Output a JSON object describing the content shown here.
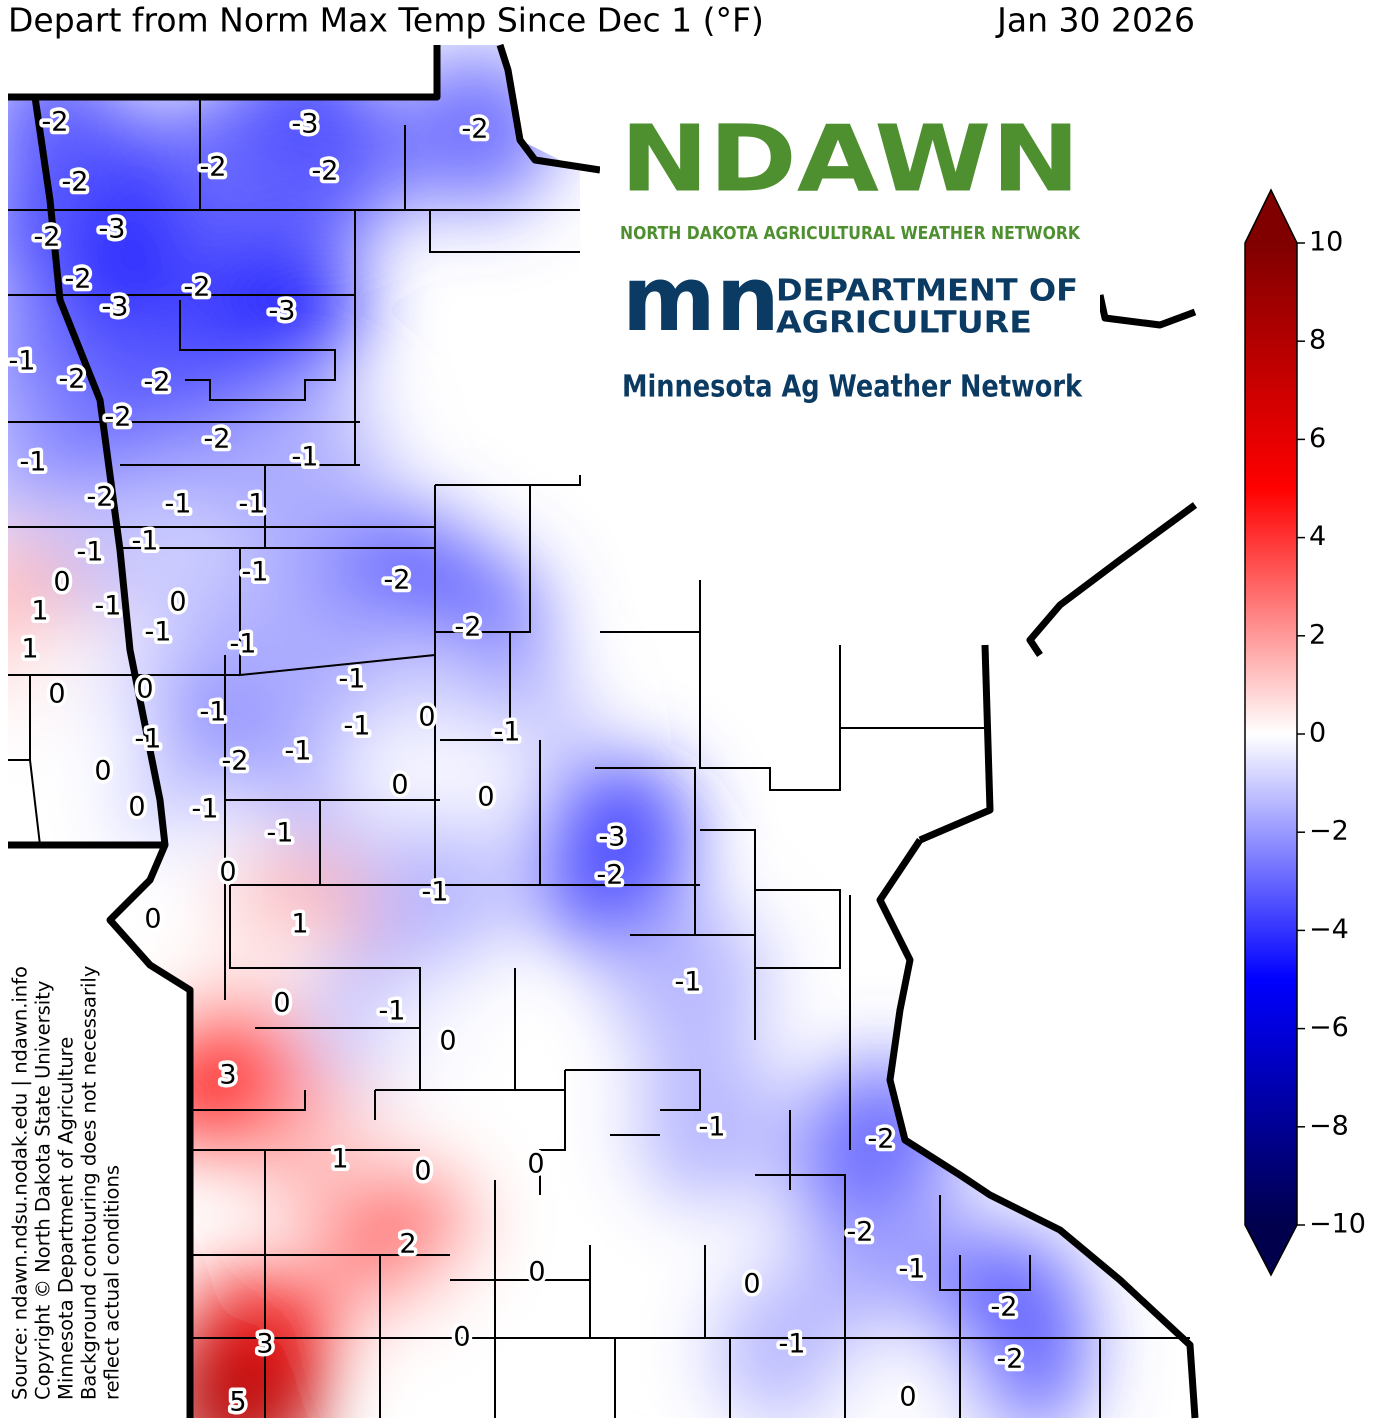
{
  "map": {
    "title": "Depart from Norm Max Temp Since Dec 1 (°F)",
    "date": "Jan 30 2026",
    "stations": [
      -2,
      -3,
      -2,
      -2,
      -2,
      -2,
      -3,
      -2,
      -2,
      -2,
      -3,
      -3,
      -1,
      -2,
      -2,
      -2,
      -2,
      -1,
      -1,
      -2,
      -1,
      -1,
      -1,
      -1,
      -1,
      -2,
      0,
      1,
      -1,
      0,
      -1,
      -2,
      1,
      -1,
      -1,
      0,
      0,
      -1,
      0,
      -1,
      -1,
      -1,
      -2,
      -1,
      0,
      0,
      0,
      0,
      -1,
      -1,
      -3,
      0,
      -2,
      -1,
      0,
      1,
      -1,
      0,
      -1,
      0,
      3,
      -1,
      -2,
      1,
      0,
      0,
      2,
      -2,
      0,
      -1,
      0,
      -2,
      3,
      0,
      -1,
      -2,
      0,
      5
    ],
    "colorbar": {
      "clim": [
        -10,
        10
      ],
      "colors": [
        "#00004c",
        "#0000ff",
        "#ffffff",
        "#ff0000",
        "#800000"
      ],
      "ticks": [
        10,
        8,
        6,
        4,
        2,
        0,
        {
          "value": -2,
          "label": "−2"
        },
        {
          "value": -4,
          "label": "−4"
        },
        {
          "value": -6,
          "label": "−6"
        },
        {
          "value": -8,
          "label": "−8"
        },
        {
          "value": -10,
          "label": "−10"
        }
      ]
    },
    "logos": {
      "ndawn": "NDAWN",
      "ndawn_sub": "NORTH DAKOTA AGRICULTURAL WEATHER NETWORK",
      "mn": "mn",
      "mda_1": "DEPARTMENT OF",
      "mda_2": "AGRICULTURE",
      "network": "Minnesota Ag Weather Network"
    },
    "source": [
      "Source: ndawn.ndsu.nodak.edu | ndawn.info",
      "Copyright © North Dakota State University",
      "Minnesota Department of Agriculture",
      "Background contouring does not necessarily",
      "reflect actual conditions"
    ]
  }
}
